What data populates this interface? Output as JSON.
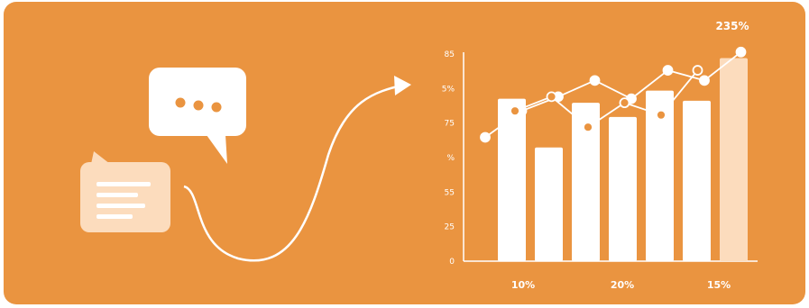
{
  "colors": {
    "background": "#ea9440",
    "bar": "#ffffff",
    "highlight_bar": "#fcdcbd",
    "line": "#ffffff",
    "text": "#ffffff"
  },
  "icons": [
    "chat-bubble-dots-icon",
    "chat-bubble-lines-icon",
    "growth-arrow-icon"
  ],
  "chart_data": {
    "type": "bar",
    "y_tick_labels": [
      "0",
      "25",
      "55",
      "%",
      "75",
      "5%",
      "85"
    ],
    "x_labels": [
      "10%",
      "20%",
      "15%"
    ],
    "highlight_label": "235%",
    "bars": [
      0.8,
      0.56,
      0.78,
      0.71,
      0.84,
      0.79,
      1.0
    ],
    "highlight_index": 6,
    "line_a": [
      0.61,
      0.74,
      0.81,
      0.89,
      0.8,
      0.94,
      0.89,
      1.03
    ],
    "line_b": [
      0.74,
      0.81,
      0.66,
      0.78,
      0.72,
      0.94
    ],
    "ylim": [
      0,
      1.1
    ]
  }
}
